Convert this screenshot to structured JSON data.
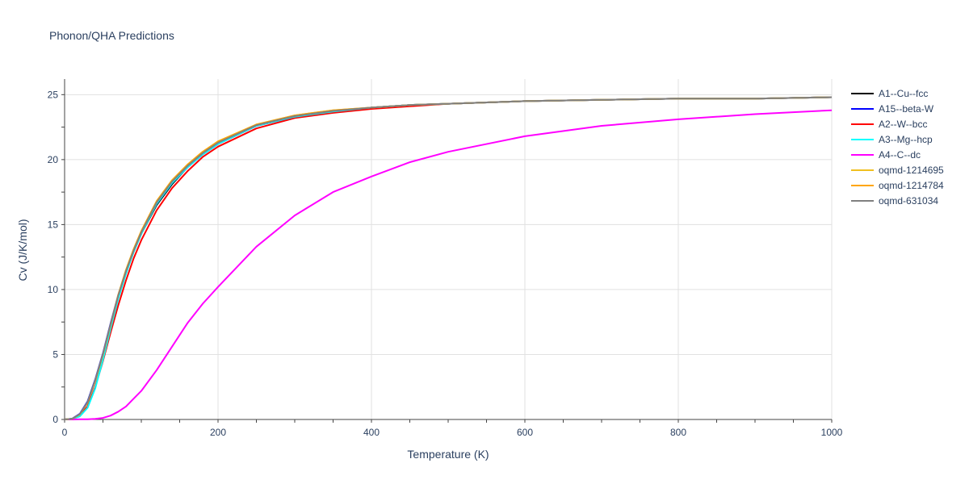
{
  "chart_data": {
    "type": "line",
    "title": "Phonon/QHA Predictions",
    "xlabel": "Temperature (K)",
    "ylabel": "Cv (J/K/mol)",
    "xlim": [
      0,
      1000
    ],
    "ylim": [
      0,
      26.2
    ],
    "xticks": [
      0,
      200,
      400,
      600,
      800,
      1000
    ],
    "yticks": [
      0,
      5,
      10,
      15,
      20,
      25
    ],
    "grid": true,
    "legend_position": "right",
    "x": [
      0,
      10,
      20,
      30,
      40,
      50,
      60,
      70,
      80,
      90,
      100,
      120,
      140,
      160,
      180,
      200,
      250,
      300,
      350,
      400,
      450,
      500,
      600,
      700,
      800,
      900,
      1000
    ],
    "series": [
      {
        "name": "A1--Cu--fcc",
        "color": "#000000",
        "values": [
          0,
          0.05,
          0.4,
          1.3,
          3.0,
          5.0,
          7.3,
          9.5,
          11.3,
          12.9,
          14.3,
          16.5,
          18.1,
          19.4,
          20.4,
          21.2,
          22.6,
          23.3,
          23.7,
          24.0,
          24.2,
          24.3,
          24.5,
          24.6,
          24.7,
          24.7,
          24.8
        ]
      },
      {
        "name": "A15--beta-W",
        "color": "#0000ff",
        "values": [
          0,
          0.06,
          0.45,
          1.4,
          3.1,
          5.1,
          7.4,
          9.6,
          11.4,
          13.0,
          14.4,
          16.6,
          18.2,
          19.4,
          20.4,
          21.2,
          22.6,
          23.3,
          23.7,
          24.0,
          24.2,
          24.3,
          24.5,
          24.6,
          24.7,
          24.7,
          24.8
        ]
      },
      {
        "name": "A2--W--bcc",
        "color": "#ff0000",
        "values": [
          0,
          0.04,
          0.3,
          1.0,
          2.5,
          4.5,
          6.7,
          8.8,
          10.7,
          12.4,
          13.8,
          16.1,
          17.8,
          19.1,
          20.2,
          21.0,
          22.4,
          23.2,
          23.6,
          23.9,
          24.1,
          24.3,
          24.5,
          24.6,
          24.7,
          24.7,
          24.8
        ]
      },
      {
        "name": "A3--Mg--hcp",
        "color": "#00ffff",
        "values": [
          0,
          0.03,
          0.25,
          0.9,
          2.4,
          4.6,
          7.0,
          9.3,
          11.2,
          12.9,
          14.3,
          16.6,
          18.2,
          19.4,
          20.4,
          21.2,
          22.6,
          23.3,
          23.7,
          24.0,
          24.2,
          24.3,
          24.5,
          24.6,
          24.7,
          24.7,
          24.8
        ]
      },
      {
        "name": "A4--C--dc",
        "color": "#ff00ff",
        "values": [
          0,
          0,
          0.01,
          0.02,
          0.05,
          0.12,
          0.3,
          0.6,
          1.0,
          1.6,
          2.2,
          3.8,
          5.6,
          7.4,
          8.9,
          10.2,
          13.3,
          15.7,
          17.5,
          18.7,
          19.8,
          20.6,
          21.8,
          22.6,
          23.1,
          23.5,
          23.8
        ]
      },
      {
        "name": "oqmd-1214695",
        "color": "#f0c020",
        "values": [
          0,
          0.05,
          0.4,
          1.3,
          3.0,
          5.0,
          7.3,
          9.6,
          11.5,
          13.1,
          14.5,
          16.8,
          18.4,
          19.6,
          20.6,
          21.4,
          22.7,
          23.4,
          23.8,
          24.0,
          24.2,
          24.3,
          24.5,
          24.6,
          24.7,
          24.7,
          24.8
        ]
      },
      {
        "name": "oqmd-1214784",
        "color": "#ffa500",
        "values": [
          0,
          0.05,
          0.4,
          1.3,
          3.0,
          5.0,
          7.3,
          9.6,
          11.5,
          13.1,
          14.5,
          16.8,
          18.4,
          19.6,
          20.6,
          21.4,
          22.7,
          23.4,
          23.8,
          24.0,
          24.2,
          24.3,
          24.5,
          24.6,
          24.7,
          24.7,
          24.8
        ]
      },
      {
        "name": "oqmd-631034",
        "color": "#808080",
        "values": [
          0,
          0.05,
          0.42,
          1.35,
          3.05,
          5.05,
          7.35,
          9.55,
          11.4,
          13.0,
          14.4,
          16.7,
          18.3,
          19.5,
          20.5,
          21.3,
          22.65,
          23.35,
          23.75,
          24.0,
          24.2,
          24.3,
          24.5,
          24.6,
          24.7,
          24.7,
          24.8
        ]
      }
    ]
  }
}
